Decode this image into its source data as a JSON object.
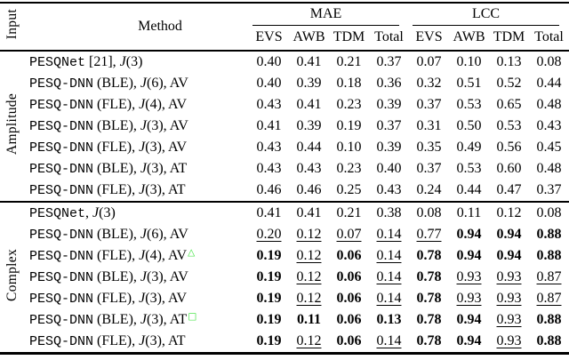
{
  "colors": {
    "marker_green": "#32e132",
    "rule_black": "#000000"
  },
  "table": {
    "header": {
      "input_label": "Input",
      "method_label": "Method",
      "groups": [
        {
          "label": "MAE"
        },
        {
          "label": "LCC"
        }
      ],
      "subcolumns": [
        "EVS",
        "AWB",
        "TDM",
        "Total"
      ]
    },
    "marker_glyphs": {
      "triangle": "△",
      "square": "□"
    },
    "sections": [
      {
        "label": "Amplitude",
        "rows": [
          {
            "method": {
              "mono": "PESQNet",
              "mid": " [21], ",
              "j": "J",
              "j_arg": "(3)",
              "suffix": "",
              "marker": ""
            },
            "values": [
              {
                "t": "0.40",
                "s": "n"
              },
              {
                "t": "0.41",
                "s": "n"
              },
              {
                "t": "0.21",
                "s": "n"
              },
              {
                "t": "0.37",
                "s": "n"
              },
              {
                "t": "0.07",
                "s": "n"
              },
              {
                "t": "0.10",
                "s": "n"
              },
              {
                "t": "0.13",
                "s": "n"
              },
              {
                "t": "0.08",
                "s": "n"
              }
            ]
          },
          {
            "method": {
              "mono": "PESQ-DNN",
              "mid": " (BLE), ",
              "j": "J",
              "j_arg": "(6)",
              "suffix": ", AV",
              "marker": ""
            },
            "values": [
              {
                "t": "0.40",
                "s": "n"
              },
              {
                "t": "0.39",
                "s": "n"
              },
              {
                "t": "0.18",
                "s": "n"
              },
              {
                "t": "0.36",
                "s": "n"
              },
              {
                "t": "0.32",
                "s": "n"
              },
              {
                "t": "0.51",
                "s": "n"
              },
              {
                "t": "0.52",
                "s": "n"
              },
              {
                "t": "0.44",
                "s": "n"
              }
            ]
          },
          {
            "method": {
              "mono": "PESQ-DNN",
              "mid": " (FLE), ",
              "j": "J",
              "j_arg": "(4)",
              "suffix": ", AV",
              "marker": ""
            },
            "values": [
              {
                "t": "0.43",
                "s": "n"
              },
              {
                "t": "0.41",
                "s": "n"
              },
              {
                "t": "0.23",
                "s": "n"
              },
              {
                "t": "0.39",
                "s": "n"
              },
              {
                "t": "0.37",
                "s": "n"
              },
              {
                "t": "0.53",
                "s": "n"
              },
              {
                "t": "0.65",
                "s": "n"
              },
              {
                "t": "0.48",
                "s": "n"
              }
            ]
          },
          {
            "method": {
              "mono": "PESQ-DNN",
              "mid": " (BLE), ",
              "j": "J",
              "j_arg": "(3)",
              "suffix": ", AV",
              "marker": ""
            },
            "values": [
              {
                "t": "0.41",
                "s": "n"
              },
              {
                "t": "0.39",
                "s": "n"
              },
              {
                "t": "0.19",
                "s": "n"
              },
              {
                "t": "0.37",
                "s": "n"
              },
              {
                "t": "0.31",
                "s": "n"
              },
              {
                "t": "0.50",
                "s": "n"
              },
              {
                "t": "0.53",
                "s": "n"
              },
              {
                "t": "0.43",
                "s": "n"
              }
            ]
          },
          {
            "method": {
              "mono": "PESQ-DNN",
              "mid": " (FLE), ",
              "j": "J",
              "j_arg": "(3)",
              "suffix": ", AV",
              "marker": ""
            },
            "values": [
              {
                "t": "0.43",
                "s": "n"
              },
              {
                "t": "0.44",
                "s": "n"
              },
              {
                "t": "0.10",
                "s": "n"
              },
              {
                "t": "0.39",
                "s": "n"
              },
              {
                "t": "0.35",
                "s": "n"
              },
              {
                "t": "0.49",
                "s": "n"
              },
              {
                "t": "0.56",
                "s": "n"
              },
              {
                "t": "0.45",
                "s": "n"
              }
            ]
          },
          {
            "method": {
              "mono": "PESQ-DNN",
              "mid": " (BLE), ",
              "j": "J",
              "j_arg": "(3)",
              "suffix": ", AT",
              "marker": ""
            },
            "values": [
              {
                "t": "0.43",
                "s": "n"
              },
              {
                "t": "0.43",
                "s": "n"
              },
              {
                "t": "0.23",
                "s": "n"
              },
              {
                "t": "0.40",
                "s": "n"
              },
              {
                "t": "0.37",
                "s": "n"
              },
              {
                "t": "0.53",
                "s": "n"
              },
              {
                "t": "0.60",
                "s": "n"
              },
              {
                "t": "0.48",
                "s": "n"
              }
            ]
          },
          {
            "method": {
              "mono": "PESQ-DNN",
              "mid": " (FLE), ",
              "j": "J",
              "j_arg": "(3)",
              "suffix": ", AT",
              "marker": ""
            },
            "values": [
              {
                "t": "0.46",
                "s": "n"
              },
              {
                "t": "0.46",
                "s": "n"
              },
              {
                "t": "0.25",
                "s": "n"
              },
              {
                "t": "0.43",
                "s": "n"
              },
              {
                "t": "0.24",
                "s": "n"
              },
              {
                "t": "0.44",
                "s": "n"
              },
              {
                "t": "0.47",
                "s": "n"
              },
              {
                "t": "0.37",
                "s": "n"
              }
            ]
          }
        ]
      },
      {
        "label": "Complex",
        "rows": [
          {
            "method": {
              "mono": "PESQNet",
              "mid": ", ",
              "j": "J",
              "j_arg": "(3)",
              "suffix": "",
              "marker": ""
            },
            "values": [
              {
                "t": "0.41",
                "s": "n"
              },
              {
                "t": "0.41",
                "s": "n"
              },
              {
                "t": "0.21",
                "s": "n"
              },
              {
                "t": "0.38",
                "s": "n"
              },
              {
                "t": "0.08",
                "s": "n"
              },
              {
                "t": "0.11",
                "s": "n"
              },
              {
                "t": "0.12",
                "s": "n"
              },
              {
                "t": "0.08",
                "s": "n"
              }
            ]
          },
          {
            "method": {
              "mono": "PESQ-DNN",
              "mid": " (BLE), ",
              "j": "J",
              "j_arg": "(6)",
              "suffix": ", AV",
              "marker": ""
            },
            "values": [
              {
                "t": "0.20",
                "s": "u"
              },
              {
                "t": "0.12",
                "s": "u"
              },
              {
                "t": "0.07",
                "s": "u"
              },
              {
                "t": "0.14",
                "s": "u"
              },
              {
                "t": "0.77",
                "s": "u"
              },
              {
                "t": "0.94",
                "s": "b"
              },
              {
                "t": "0.94",
                "s": "b"
              },
              {
                "t": "0.88",
                "s": "b"
              }
            ]
          },
          {
            "method": {
              "mono": "PESQ-DNN",
              "mid": " (FLE), ",
              "j": "J",
              "j_arg": "(4)",
              "suffix": ", AV",
              "marker": "triangle"
            },
            "values": [
              {
                "t": "0.19",
                "s": "b"
              },
              {
                "t": "0.12",
                "s": "u"
              },
              {
                "t": "0.06",
                "s": "b"
              },
              {
                "t": "0.14",
                "s": "u"
              },
              {
                "t": "0.78",
                "s": "b"
              },
              {
                "t": "0.94",
                "s": "b"
              },
              {
                "t": "0.94",
                "s": "b"
              },
              {
                "t": "0.88",
                "s": "b"
              }
            ]
          },
          {
            "method": {
              "mono": "PESQ-DNN",
              "mid": " (BLE), ",
              "j": "J",
              "j_arg": "(3)",
              "suffix": ", AV",
              "marker": ""
            },
            "values": [
              {
                "t": "0.19",
                "s": "b"
              },
              {
                "t": "0.12",
                "s": "u"
              },
              {
                "t": "0.06",
                "s": "b"
              },
              {
                "t": "0.14",
                "s": "u"
              },
              {
                "t": "0.78",
                "s": "b"
              },
              {
                "t": "0.93",
                "s": "u"
              },
              {
                "t": "0.93",
                "s": "u"
              },
              {
                "t": "0.87",
                "s": "u"
              }
            ]
          },
          {
            "method": {
              "mono": "PESQ-DNN",
              "mid": " (FLE), ",
              "j": "J",
              "j_arg": "(3)",
              "suffix": ", AV",
              "marker": ""
            },
            "values": [
              {
                "t": "0.19",
                "s": "b"
              },
              {
                "t": "0.12",
                "s": "u"
              },
              {
                "t": "0.06",
                "s": "b"
              },
              {
                "t": "0.14",
                "s": "u"
              },
              {
                "t": "0.78",
                "s": "b"
              },
              {
                "t": "0.93",
                "s": "u"
              },
              {
                "t": "0.93",
                "s": "u"
              },
              {
                "t": "0.87",
                "s": "u"
              }
            ]
          },
          {
            "method": {
              "mono": "PESQ-DNN",
              "mid": " (BLE), ",
              "j": "J",
              "j_arg": "(3)",
              "suffix": ", AT",
              "marker": "square"
            },
            "values": [
              {
                "t": "0.19",
                "s": "b"
              },
              {
                "t": "0.11",
                "s": "b"
              },
              {
                "t": "0.06",
                "s": "b"
              },
              {
                "t": "0.13",
                "s": "b"
              },
              {
                "t": "0.78",
                "s": "b"
              },
              {
                "t": "0.94",
                "s": "b"
              },
              {
                "t": "0.93",
                "s": "u"
              },
              {
                "t": "0.88",
                "s": "b"
              }
            ]
          },
          {
            "method": {
              "mono": "PESQ-DNN",
              "mid": " (FLE), ",
              "j": "J",
              "j_arg": "(3)",
              "suffix": ", AT",
              "marker": ""
            },
            "values": [
              {
                "t": "0.19",
                "s": "b"
              },
              {
                "t": "0.12",
                "s": "u"
              },
              {
                "t": "0.06",
                "s": "b"
              },
              {
                "t": "0.14",
                "s": "u"
              },
              {
                "t": "0.78",
                "s": "b"
              },
              {
                "t": "0.94",
                "s": "b"
              },
              {
                "t": "0.93",
                "s": "u"
              },
              {
                "t": "0.88",
                "s": "b"
              }
            ]
          }
        ]
      }
    ]
  }
}
